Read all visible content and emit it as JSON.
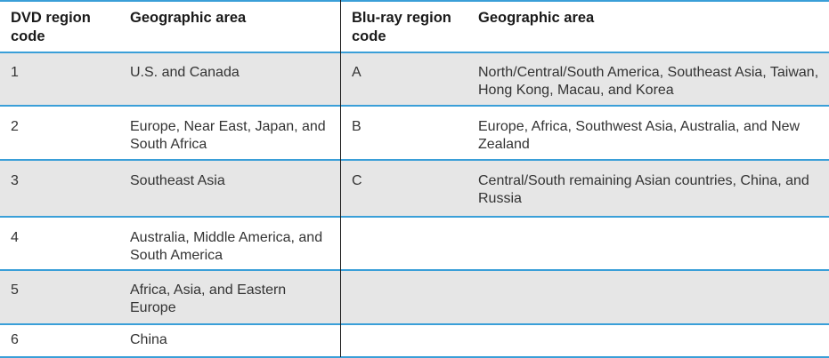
{
  "header": {
    "dvd_code": "DVD region code",
    "dvd_area": "Geographic area",
    "bluray_code": "Blu-ray region code",
    "bluray_area": "Geographic area"
  },
  "rows": [
    {
      "dvd_code": "1",
      "dvd_area": "U.S. and Canada",
      "bluray_code": "A",
      "bluray_area": "North/Central/South America, Southeast Asia, Taiwan, Hong Kong, Macau, and Korea"
    },
    {
      "dvd_code": "2",
      "dvd_area": "Europe, Near East, Japan, and South Africa",
      "bluray_code": "B",
      "bluray_area": "Europe, Africa, Southwest Asia, Australia, and New Zealand"
    },
    {
      "dvd_code": "3",
      "dvd_area": "Southeast Asia",
      "bluray_code": "C",
      "bluray_area": "Central/South remaining Asian countries, China, and Russia"
    },
    {
      "dvd_code": "4",
      "dvd_area": "Australia, Middle America, and South America",
      "bluray_code": "",
      "bluray_area": ""
    },
    {
      "dvd_code": "5",
      "dvd_area": "Africa, Asia, and Eastern Europe",
      "bluray_code": "",
      "bluray_area": ""
    },
    {
      "dvd_code": "6",
      "dvd_area": "China",
      "bluray_code": "",
      "bluray_area": ""
    }
  ]
}
